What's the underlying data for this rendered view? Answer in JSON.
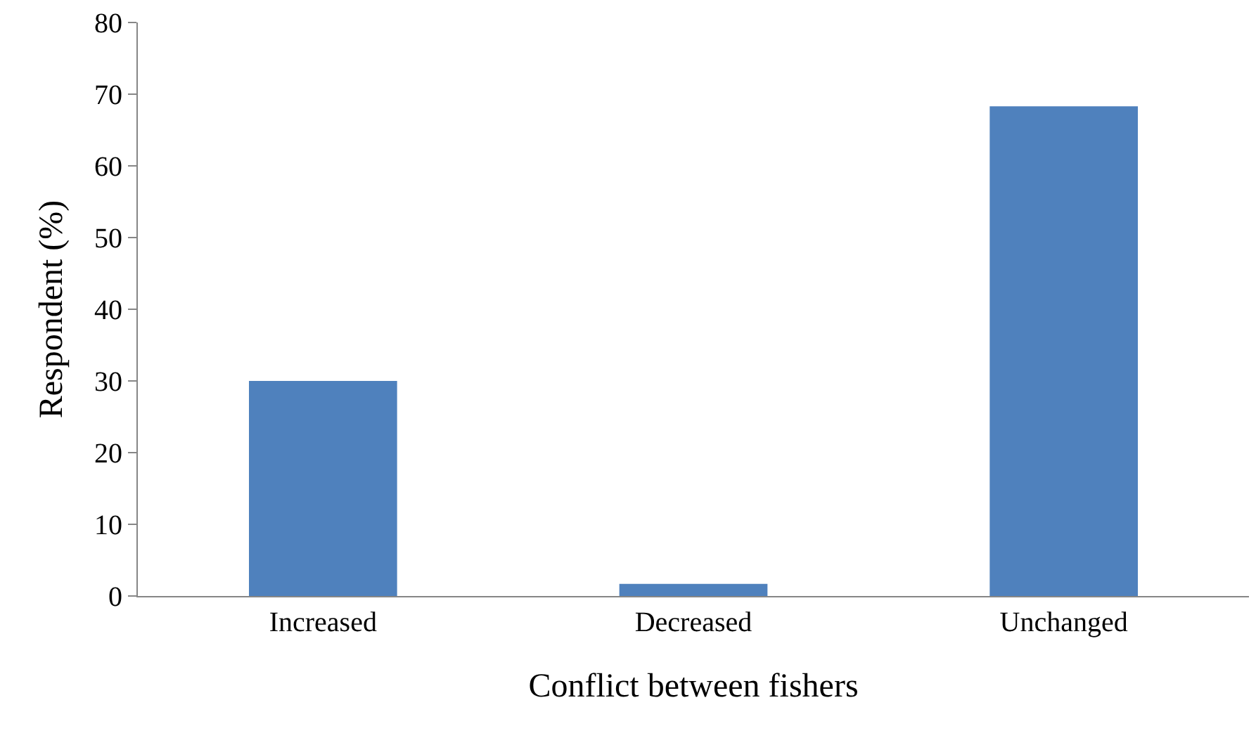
{
  "chart_data": {
    "type": "bar",
    "xlabel": "Conflict between fishers",
    "ylabel": "Respondent (%)",
    "categories": [
      "Increased",
      "Decreased",
      "Unchanged"
    ],
    "values": [
      30.0,
      1.7,
      68.3
    ],
    "color": "#4f81bd",
    "ylim": [
      0,
      80
    ],
    "yticks": [
      0,
      10,
      20,
      30,
      40,
      50,
      60,
      70,
      80
    ]
  }
}
